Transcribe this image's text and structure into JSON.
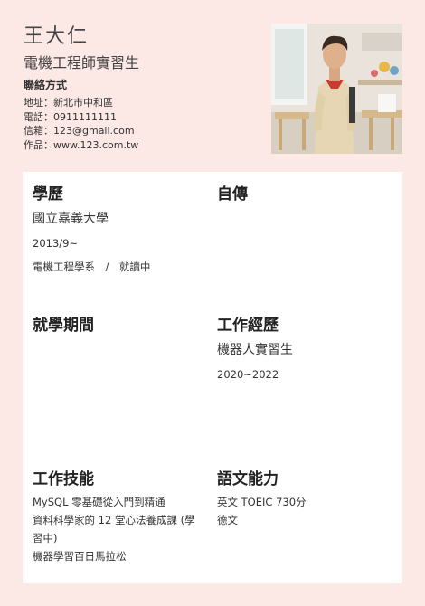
{
  "header": {
    "name": "王大仁",
    "role": "電機工程師實習生",
    "contact_title": "聯絡方式",
    "contact_lines": [
      "地址：新北市中和區",
      "電話：0911111111",
      "信箱：123@gmail.com",
      "作品：www.123.com.tw"
    ]
  },
  "education": {
    "title": "學歷",
    "school": "國立嘉義大學",
    "date": "2013/9~",
    "dept": "電機工程學系　/　就讀中"
  },
  "autobiography": {
    "title": "自傳"
  },
  "study_period": {
    "title": "就學期間"
  },
  "experience": {
    "title": "工作經歷",
    "job": "機器人實習生",
    "years": "2020~2022"
  },
  "skills": {
    "title": "工作技能",
    "items": [
      "MySQL 零基礎從入門到精通",
      "資料科學家的 12 堂心法養成課 (學習中)",
      "機器學習百日馬拉松"
    ]
  },
  "languages": {
    "title": "語文能力",
    "items": [
      "英文 TOEIC 730分",
      "德文"
    ]
  },
  "colors": {
    "page_bg": "#fce8e5",
    "card_bg": "#ffffff",
    "text": "#333333"
  }
}
